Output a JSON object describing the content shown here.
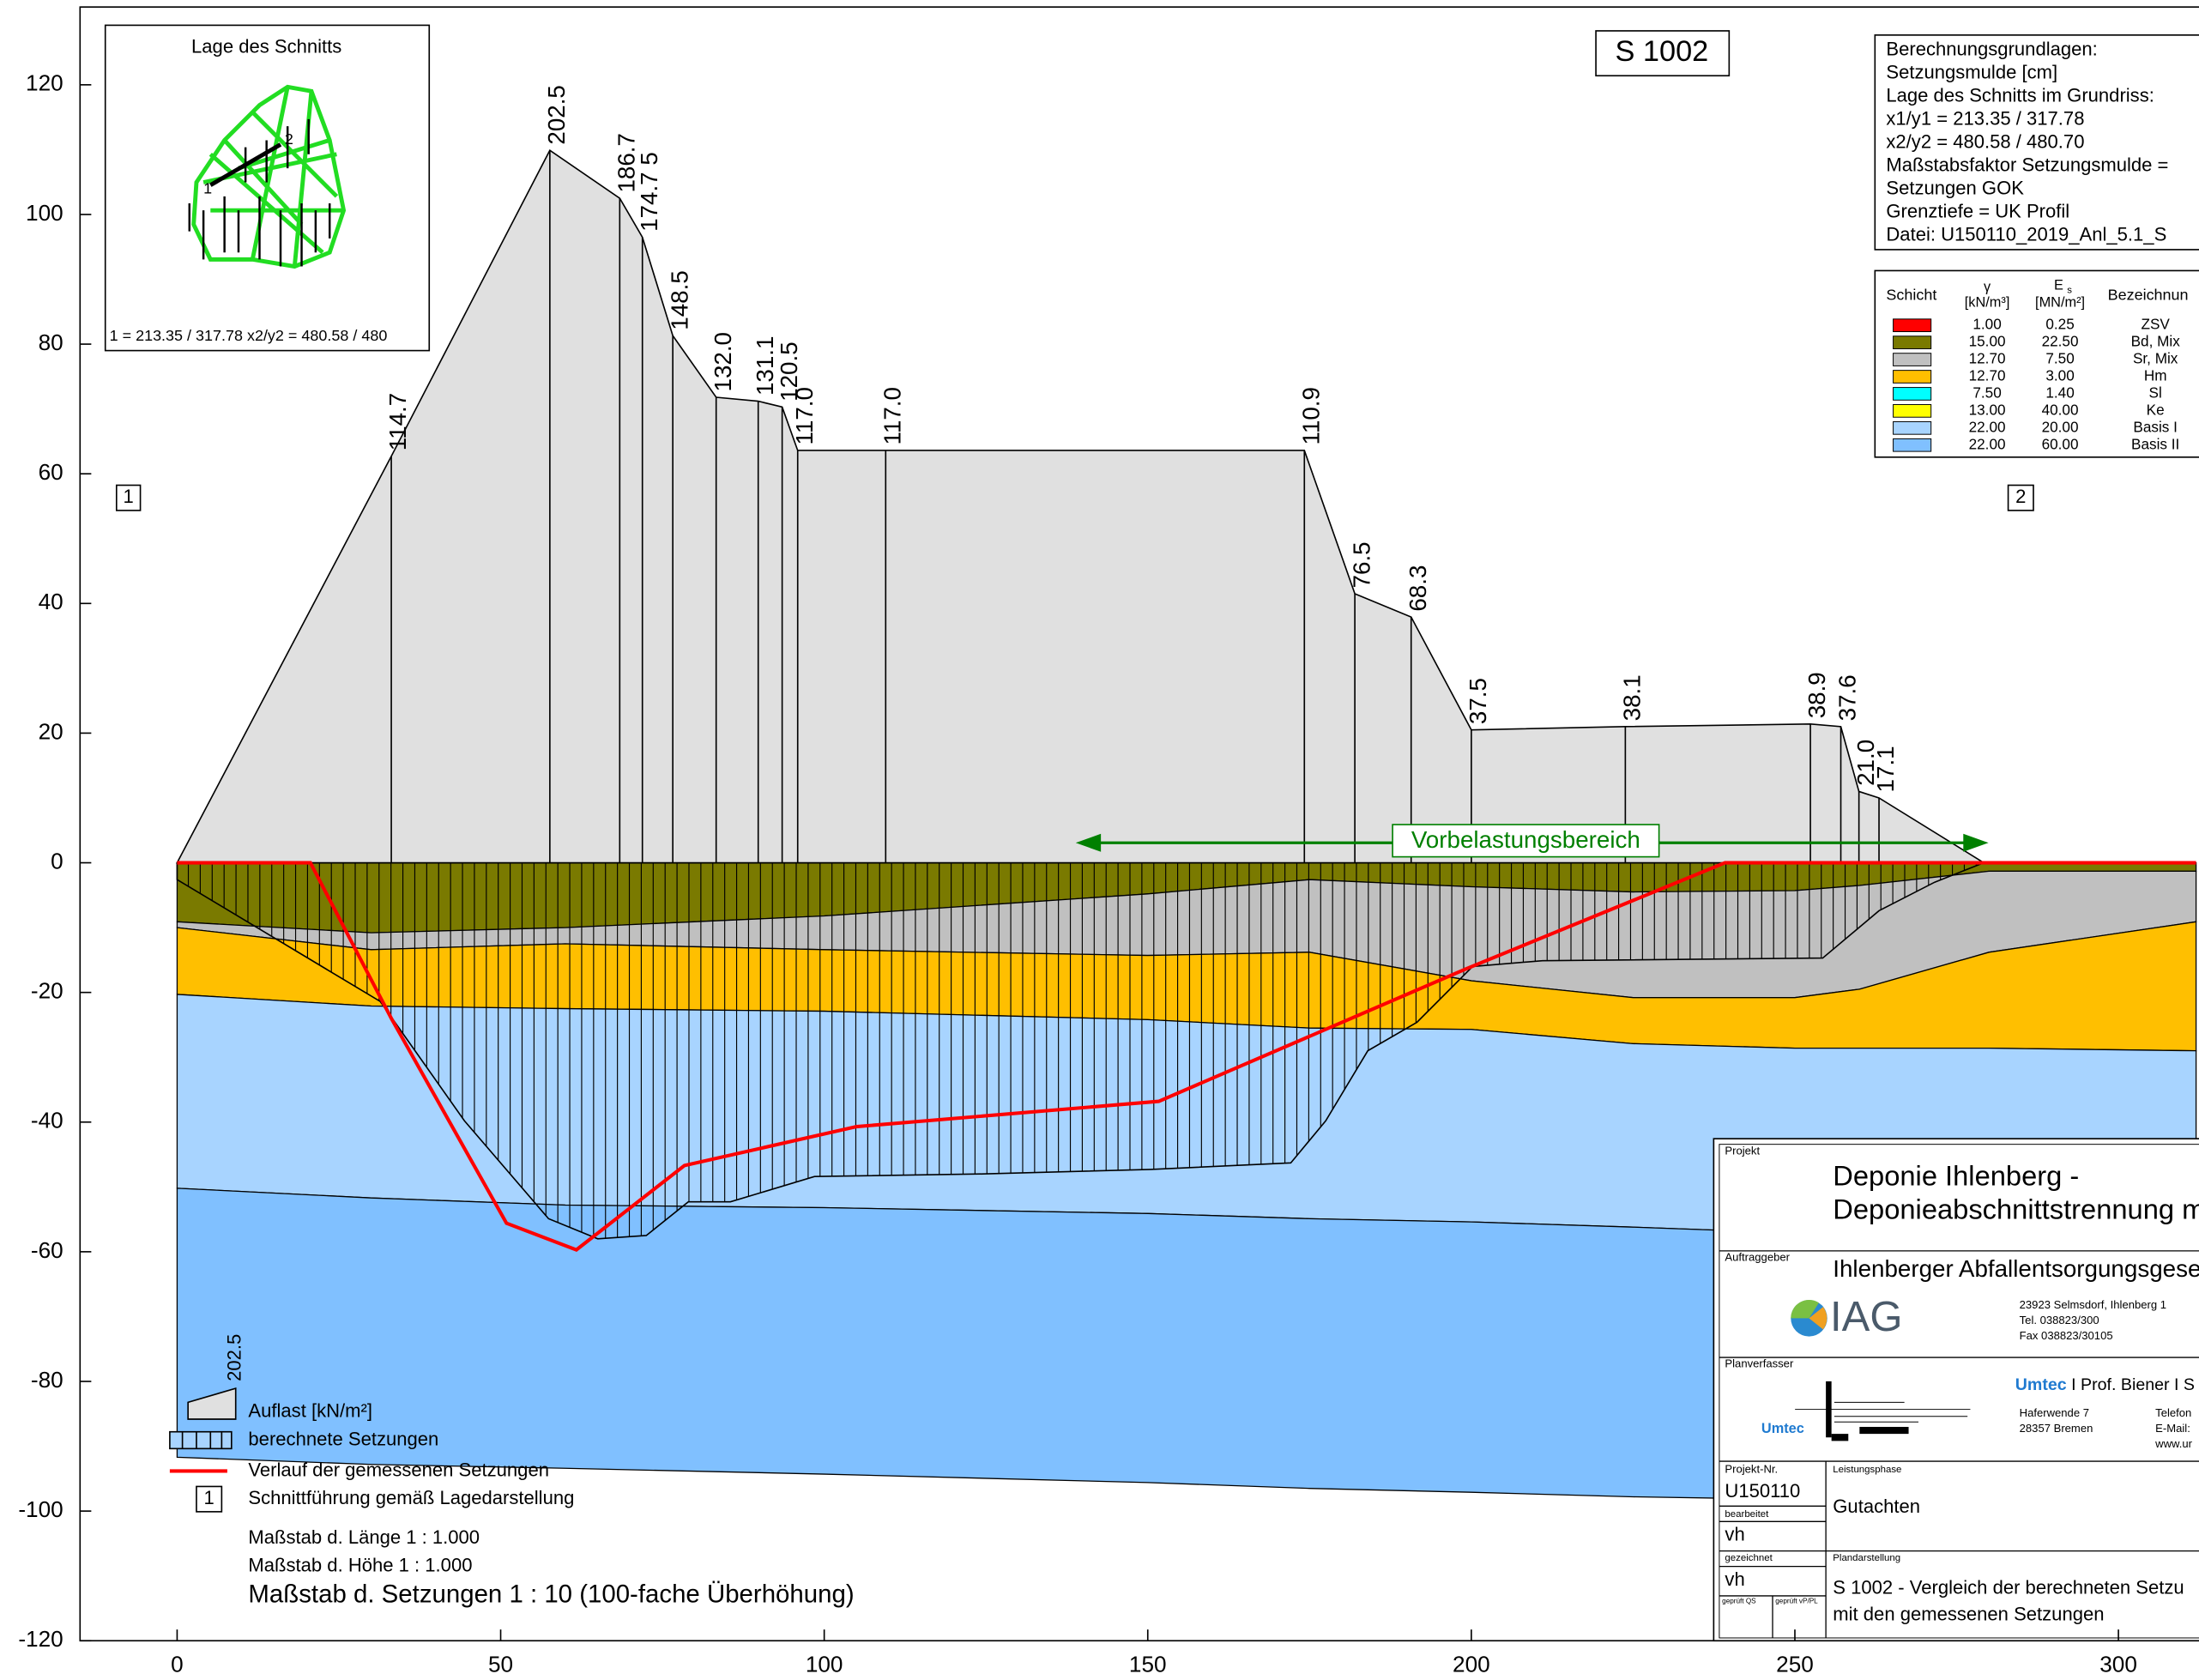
{
  "chart_data": {
    "type": "section",
    "xlim": [
      -15,
      312
    ],
    "ylim": [
      -120,
      132
    ],
    "xticks": [
      0,
      50,
      100,
      150,
      200,
      250,
      300
    ],
    "yticks": [
      -120,
      -100,
      -80,
      -60,
      -40,
      -20,
      0,
      20,
      40,
      60,
      80,
      100,
      120
    ],
    "load": {
      "color": "#e0e0e0",
      "x": [
        0,
        33.1,
        57.6,
        68.4,
        71.9,
        76.6,
        83.3,
        89.8,
        93.5,
        95.9,
        109.5,
        174.2,
        182,
        190.7,
        200,
        223.8,
        252.4,
        257.1,
        259.9,
        263,
        279.2
      ],
      "y": [
        0,
        62.7,
        109.9,
        102.5,
        96.5,
        81.3,
        71.8,
        71.2,
        70.3,
        63.6,
        63.6,
        63.6,
        41.5,
        37.9,
        20.5,
        21,
        21.4,
        21,
        11,
        10,
        0
      ],
      "labels": [
        null,
        "114.7",
        "202.5",
        "186.7",
        "174.7 5",
        "148.5",
        "132.0",
        "131.1",
        "120.5",
        "117.0",
        "117.0",
        "110.9",
        "76.5",
        "68.3",
        "37.5",
        "38.1",
        "38.9",
        "37.6",
        "21.0",
        "17.1",
        null
      ]
    },
    "settlement": {
      "x": [
        0,
        31.4,
        44.4,
        57.4,
        65,
        72.5,
        79,
        85.5,
        98.5,
        124.5,
        150.5,
        172.1,
        177.5,
        184,
        191.6,
        200.2,
        211,
        254.3,
        263,
        271.6,
        279.2
      ],
      "y": [
        -2.6,
        -21.4,
        -39.8,
        -54.9,
        -58,
        -57.5,
        -52.3,
        -52.3,
        -48.4,
        -48,
        -47.3,
        -46.3,
        -39.8,
        -29,
        -24.6,
        -16,
        -15.1,
        -14.7,
        -7.4,
        -3,
        0
      ]
    },
    "measured": {
      "color": "#ff0000",
      "x": [
        0,
        20.6,
        33.1,
        50.9,
        61.7,
        78.4,
        105,
        151.7,
        199.1,
        239.2,
        312
      ],
      "y": [
        0,
        0,
        -24,
        -55.6,
        -59.7,
        -46.7,
        -40.7,
        -36.8,
        -16.4,
        0,
        0
      ]
    },
    "boundary_x": [
      0,
      30,
      60,
      100,
      150,
      175,
      200,
      225,
      250,
      260,
      280,
      312
    ],
    "layers": [
      {
        "gamma": "1.00",
        "es": "0.25",
        "name": "ZSV",
        "color": "#ff0000"
      },
      {
        "gamma": "15.00",
        "es": "22.50",
        "name": "Bd, Mix",
        "color": "#7a7a00",
        "bottom": [
          -9.1,
          -10.8,
          -10,
          -8.2,
          -4.8,
          -2.6,
          -3.7,
          -4.5,
          -4.3,
          -3.5,
          -1.3,
          -1.3
        ]
      },
      {
        "gamma": "12.70",
        "es": "7.50",
        "name": "Sr, Mix",
        "color": "#c0c0c0",
        "bottom": [
          -10,
          -13.4,
          -12.5,
          -13.4,
          -14.3,
          -13.8,
          -18.2,
          -20.8,
          -20.8,
          -19.5,
          -13.8,
          -9.1
        ]
      },
      {
        "gamma": "12.70",
        "es": "3.00",
        "name": "Hm",
        "color": "#ffbf00",
        "bottom": [
          -20.3,
          -22.1,
          -22.5,
          -22.9,
          -24.2,
          -25.5,
          -25.7,
          -27.9,
          -28.6,
          -28.6,
          -28.6,
          -29
        ]
      },
      {
        "gamma": "7.50",
        "es": "1.40",
        "name": "Sl",
        "color": "#00ffff"
      },
      {
        "gamma": "13.00",
        "es": "40.00",
        "name": "Ke",
        "color": "#ffff00"
      },
      {
        "gamma": "22.00",
        "es": "20.00",
        "name": "Basis I",
        "color": "#a8d4ff",
        "bottom": [
          -50.2,
          -51.7,
          -52.8,
          -53.2,
          -54.1,
          -54.9,
          -55.4,
          -56.2,
          -57.1,
          -57.1,
          -57.1,
          -57.1
        ]
      },
      {
        "gamma": "22.00",
        "es": "60.00",
        "name": "Basis II",
        "color": "#80c0ff",
        "bottom": [
          -91.7,
          -92.8,
          -93.4,
          -94.3,
          -95.6,
          -96.5,
          -97.1,
          -97.8,
          -98.2,
          -98.2,
          -98.2,
          -98.2
        ]
      }
    ],
    "table_header": {
      "layer": "Schicht",
      "gamma": "γ",
      "gamma_unit": "[kN/m³]",
      "es": "E",
      "es_sub": "s",
      "es_unit": "[MN/m²]",
      "name": "Bezeichnun"
    },
    "annotation": "Vorbelastungsbereich",
    "section_id": "S 1002",
    "marker_start": "1",
    "marker_end": "2"
  },
  "info": [
    "Berechnungsgrundlagen:",
    "Setzungsmulde [cm]",
    "Lage des Schnitts im Grundriss:",
    "x1/y1 = 213.35 / 317.78",
    "x2/y2 = 480.58 / 480.70",
    "Maßstabsfaktor Setzungsmulde =",
    "Setzungen GOK",
    "Grenztiefe = UK Profil",
    "Datei: U150110_2019_Anl_5.1_S"
  ],
  "inset": {
    "title": "Lage des Schnitts",
    "coords": "1 = 213.35 / 317.78   x2/y2 = 480.58 / 480",
    "p1": "1",
    "p2": "2"
  },
  "legend": {
    "load_sample": "202.5",
    "load": "Auflast [kN/m²]",
    "settlement": "berechnete Setzungen",
    "measured": "Verlauf der gemessenen Setzungen",
    "marker": "1",
    "marker_text": "Schnittführung gemäß Lagedarstellung",
    "scale_length": "Maßstab d. Länge 1 : 1.000",
    "scale_height": "Maßstab d. Höhe 1 : 1.000",
    "scale_settlement": "Maßstab d. Setzungen 1 : 10 (100-fache Überhöhung)"
  },
  "title_block": {
    "project_label": "Projekt",
    "project_1": "Deponie Ihlenberg -",
    "project_2": "Deponieabschnittstrennung m",
    "client_label": "Auftraggeber",
    "client": "Ihlenberger Abfallentsorgungsgesellsch",
    "client_logo": "IAG",
    "client_addr": [
      "23923 Selmsdorf, Ihlenberg 1",
      "Tel. 038823/300",
      "Fax 038823/30105"
    ],
    "planner_label": "Planverfasser",
    "planner_brand": "Umtec",
    "planner": " I Prof. Biener I S",
    "planner_addr": [
      "Haferwende 7",
      "28357 Bremen"
    ],
    "planner_contact": [
      "Telefon",
      "E-Mail:",
      "www.ur"
    ],
    "planner_logo": "Umtec",
    "projno_label": "Projekt-Nr.",
    "projno": "U150110",
    "edited_label": "bearbeitet",
    "edited": "vh",
    "drawn_label": "gezeichnet",
    "drawn": "vh",
    "check_qs": "geprüft QS",
    "check_pl": "geprüft vP/PL",
    "phase_label": "Leistungsphase",
    "phase": "Gutachten",
    "plan_label": "Plandarstellung",
    "plan_1": "S 1002 - Vergleich der berechneten Setzu",
    "plan_2": "mit den gemessenen Setzungen"
  }
}
